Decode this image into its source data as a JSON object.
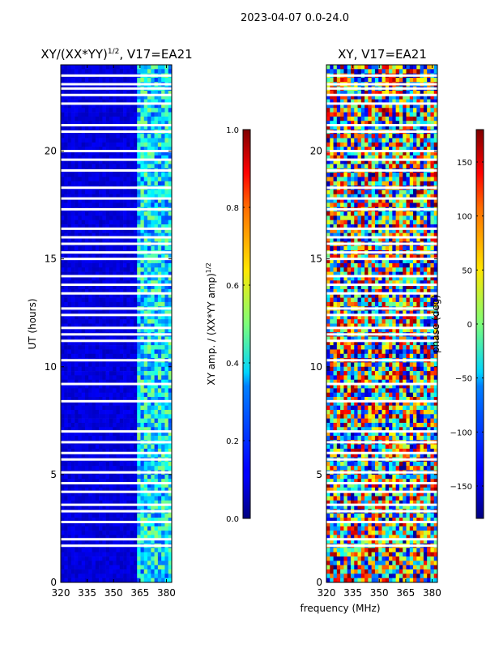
{
  "figure": {
    "suptitle": "2023-04-07 0.0-24.0",
    "xlabel_shared": "frequency (MHz)"
  },
  "chart_data": [
    {
      "type": "heatmap",
      "title_main": "XY/(XX*YY)",
      "title_exp": "1/2",
      "title_suffix": ", V17=EA21",
      "x": {
        "label": "frequency (MHz)",
        "range": [
          320,
          383
        ],
        "ticks": [
          "320",
          "335",
          "350",
          "365",
          "380"
        ],
        "tick_values": [
          320,
          335,
          350,
          365,
          380
        ]
      },
      "y": {
        "label": "UT (hours)",
        "range": [
          0,
          24
        ],
        "ticks": [
          "0",
          "5",
          "10",
          "15",
          "20"
        ],
        "tick_values": [
          0,
          5,
          10,
          15,
          20
        ]
      },
      "value_range": [
        0,
        1
      ],
      "description_values": {
        "background": 0.05,
        "band_365_383": 0.3
      },
      "colorbar": {
        "label_main": "XY amp. / (XX*YY amp)",
        "label_exp": "1/2",
        "range": [
          0,
          1
        ],
        "ticks": [
          "0.0",
          "0.2",
          "0.4",
          "0.6",
          "0.8",
          "1.0"
        ],
        "tick_values": [
          0,
          0.2,
          0.4,
          0.6,
          0.8,
          1.0
        ]
      }
    },
    {
      "type": "heatmap",
      "title": "XY, V17=EA21",
      "x": {
        "label": "frequency (MHz)",
        "range": [
          320,
          383
        ],
        "ticks": [
          "320",
          "335",
          "350",
          "365",
          "380"
        ],
        "tick_values": [
          320,
          335,
          350,
          365,
          380
        ]
      },
      "y": {
        "label": "",
        "range": [
          0,
          24
        ],
        "ticks": [
          "0",
          "5",
          "10",
          "15",
          "20"
        ],
        "tick_values": [
          0,
          5,
          10,
          15,
          20
        ]
      },
      "value_range": [
        -180,
        180
      ],
      "colorbar": {
        "label": "phase (deg)",
        "range": [
          -180,
          180
        ],
        "ticks": [
          "−150",
          "−100",
          "−50",
          "0",
          "50",
          "100",
          "150"
        ],
        "tick_values": [
          -150,
          -100,
          -50,
          0,
          50,
          100,
          150
        ]
      }
    }
  ],
  "flagged_hours": [
    1.7,
    2.0,
    2.8,
    3.3,
    3.6,
    4.2,
    4.6,
    5.1,
    5.7,
    6.0,
    6.5,
    7.0,
    8.4,
    9.2,
    10.3,
    11.2,
    11.5,
    11.8,
    12.4,
    12.7,
    13.4,
    13.8,
    14.2,
    15.0,
    15.3,
    15.7,
    16.0,
    16.4,
    17.3,
    17.8,
    18.3,
    19.1,
    19.6,
    20.0,
    20.9,
    21.2,
    22.2,
    22.6,
    22.9,
    23.1,
    23.5
  ]
}
